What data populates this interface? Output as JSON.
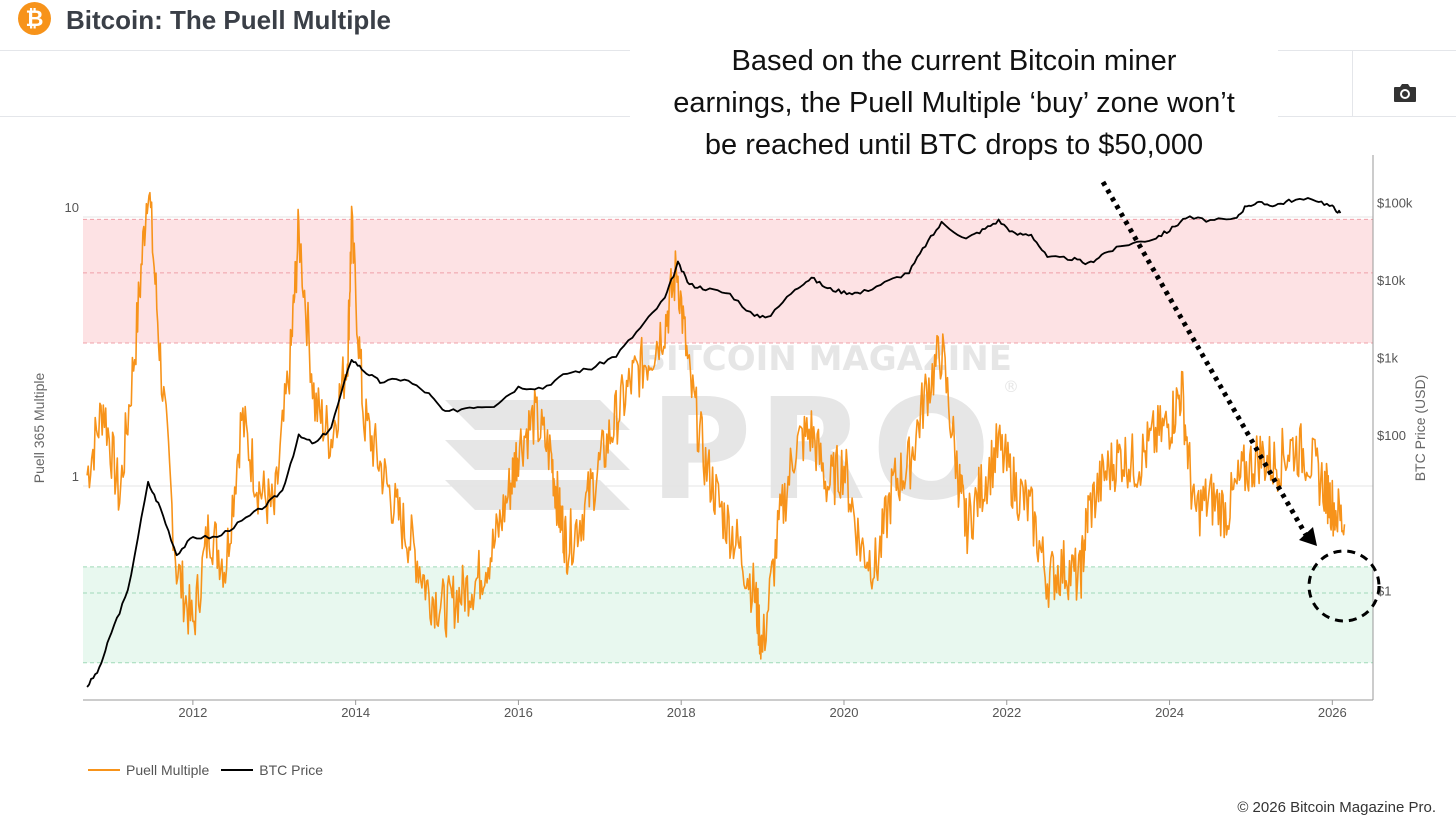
{
  "header": {
    "logo_glyph": "₿",
    "title": "Bitcoin: The Puell Multiple"
  },
  "toolbar": {
    "camera_icon": "camera-icon"
  },
  "annotation": {
    "lines": [
      "Based on the current Bitcoin miner",
      "earnings, the Puell Multiple ‘buy’ zone won’t",
      "be reached until BTC drops to $50,000"
    ]
  },
  "watermark": {
    "brand": "BITCOIN MAGAZINE",
    "product": "PRO",
    "mark": "®"
  },
  "legend": {
    "items": [
      {
        "label": "Puell Multiple",
        "color": "#f7931a"
      },
      {
        "label": "BTC Price",
        "color": "#000000"
      }
    ]
  },
  "footer": {
    "copyright": "© 2026 Bitcoin Magazine Pro."
  },
  "chart_data": {
    "type": "line",
    "title": "Bitcoin: The Puell Multiple",
    "xlabel": "",
    "ylabel_left": "Puell 365 Multiple",
    "ylabel_right": "BTC Price (USD)",
    "x_ticks": [
      "2012",
      "2014",
      "2016",
      "2018",
      "2020",
      "2022",
      "2024",
      "2026"
    ],
    "x_range": [
      2010.65,
      2026.5
    ],
    "y_left": {
      "scale": "log",
      "range": [
        0.16,
        17
      ],
      "ticks": [
        {
          "value": 1,
          "label": "1"
        },
        {
          "value": 10,
          "label": "10"
        }
      ]
    },
    "y_right": {
      "scale": "log",
      "range": [
        0.04,
        420000
      ],
      "ticks": [
        {
          "value": 1,
          "label": "$1"
        },
        {
          "value": 100,
          "label": "$100"
        },
        {
          "value": 1000,
          "label": "$1k"
        },
        {
          "value": 10000,
          "label": "$10k"
        },
        {
          "value": 100000,
          "label": "$100k"
        }
      ]
    },
    "zones": [
      {
        "name": "high-zone",
        "from": 3.4,
        "to": 9.8,
        "color": "#fde2e4",
        "lines": [
          3.4,
          6.2,
          9.8
        ]
      },
      {
        "name": "low-zone",
        "from": 0.22,
        "to": 0.5,
        "color": "#e8f8ef",
        "lines": [
          0.22,
          0.4,
          0.5
        ]
      }
    ],
    "series": [
      {
        "name": "Puell Multiple",
        "color": "#f7931a",
        "axis": "left",
        "x": [
          2010.7,
          2010.9,
          2011.1,
          2011.3,
          2011.45,
          2011.6,
          2011.8,
          2012.0,
          2012.2,
          2012.4,
          2012.6,
          2012.8,
          2013.0,
          2013.2,
          2013.3,
          2013.5,
          2013.7,
          2013.9,
          2013.95,
          2014.1,
          2014.3,
          2014.5,
          2014.7,
          2014.9,
          2015.1,
          2015.3,
          2015.5,
          2015.7,
          2015.9,
          2016.0,
          2016.2,
          2016.4,
          2016.5,
          2016.6,
          2016.8,
          2017.0,
          2017.2,
          2017.4,
          2017.6,
          2017.8,
          2017.95,
          2018.1,
          2018.3,
          2018.5,
          2018.7,
          2018.9,
          2019.0,
          2019.2,
          2019.4,
          2019.6,
          2019.8,
          2020.0,
          2020.2,
          2020.4,
          2020.6,
          2020.8,
          2021.0,
          2021.2,
          2021.4,
          2021.5,
          2021.7,
          2021.9,
          2022.1,
          2022.3,
          2022.5,
          2022.7,
          2022.9,
          2023.0,
          2023.2,
          2023.4,
          2023.6,
          2023.8,
          2024.0,
          2024.15,
          2024.3,
          2024.5,
          2024.7,
          2024.9,
          2025.1,
          2025.3,
          2025.5,
          2025.7,
          2025.9,
          2026.0,
          2026.15
        ],
        "values": [
          1.1,
          2.0,
          0.9,
          3.5,
          14.0,
          3.0,
          0.5,
          0.3,
          0.7,
          0.5,
          1.8,
          1.0,
          0.8,
          3.0,
          9.0,
          2.0,
          1.5,
          3.0,
          9.0,
          1.8,
          1.2,
          0.8,
          0.6,
          0.4,
          0.35,
          0.4,
          0.45,
          0.6,
          1.0,
          1.4,
          1.8,
          1.3,
          0.8,
          0.6,
          0.8,
          1.2,
          1.8,
          2.5,
          3.0,
          4.0,
          6.5,
          2.5,
          1.2,
          0.8,
          0.6,
          0.4,
          0.25,
          0.7,
          1.4,
          1.6,
          1.0,
          1.2,
          0.6,
          0.5,
          1.0,
          1.2,
          2.2,
          3.2,
          1.1,
          0.7,
          1.0,
          1.4,
          1.0,
          0.8,
          0.45,
          0.5,
          0.45,
          0.8,
          1.1,
          1.3,
          1.2,
          1.5,
          1.7,
          2.3,
          0.8,
          0.9,
          0.8,
          1.1,
          1.3,
          1.2,
          1.4,
          1.3,
          1.0,
          0.85,
          0.72
        ]
      },
      {
        "name": "BTC Price",
        "color": "#000000",
        "axis": "right",
        "x": [
          2010.7,
          2010.85,
          2011.0,
          2011.2,
          2011.45,
          2011.6,
          2011.8,
          2012.0,
          2012.3,
          2012.6,
          2012.9,
          2013.1,
          2013.3,
          2013.5,
          2013.7,
          2013.95,
          2014.1,
          2014.3,
          2014.6,
          2014.9,
          2015.1,
          2015.4,
          2015.7,
          2016.0,
          2016.3,
          2016.6,
          2016.9,
          2017.2,
          2017.5,
          2017.8,
          2017.96,
          2018.1,
          2018.3,
          2018.6,
          2018.9,
          2019.1,
          2019.4,
          2019.6,
          2019.8,
          2020.0,
          2020.2,
          2020.5,
          2020.8,
          2021.0,
          2021.2,
          2021.5,
          2021.7,
          2021.9,
          2022.1,
          2022.3,
          2022.5,
          2022.8,
          2023.0,
          2023.2,
          2023.5,
          2023.8,
          2024.0,
          2024.2,
          2024.5,
          2024.8,
          2024.95,
          2025.1,
          2025.3,
          2025.5,
          2025.8,
          2026.0,
          2026.1
        ],
        "values": [
          0.06,
          0.1,
          0.3,
          1.0,
          25,
          12,
          3,
          5,
          5,
          8,
          13,
          20,
          100,
          80,
          130,
          1000,
          700,
          500,
          550,
          350,
          200,
          240,
          250,
          430,
          420,
          650,
          750,
          1100,
          2500,
          6000,
          17000,
          9000,
          8000,
          6800,
          3500,
          3600,
          8000,
          11000,
          8000,
          7200,
          7000,
          9500,
          13000,
          29000,
          56000,
          35000,
          45000,
          60000,
          40000,
          40000,
          20000,
          19500,
          16500,
          23000,
          30000,
          35000,
          45000,
          66000,
          60000,
          62000,
          95000,
          100000,
          95000,
          110000,
          112000,
          90000,
          75000
        ]
      }
    ]
  }
}
